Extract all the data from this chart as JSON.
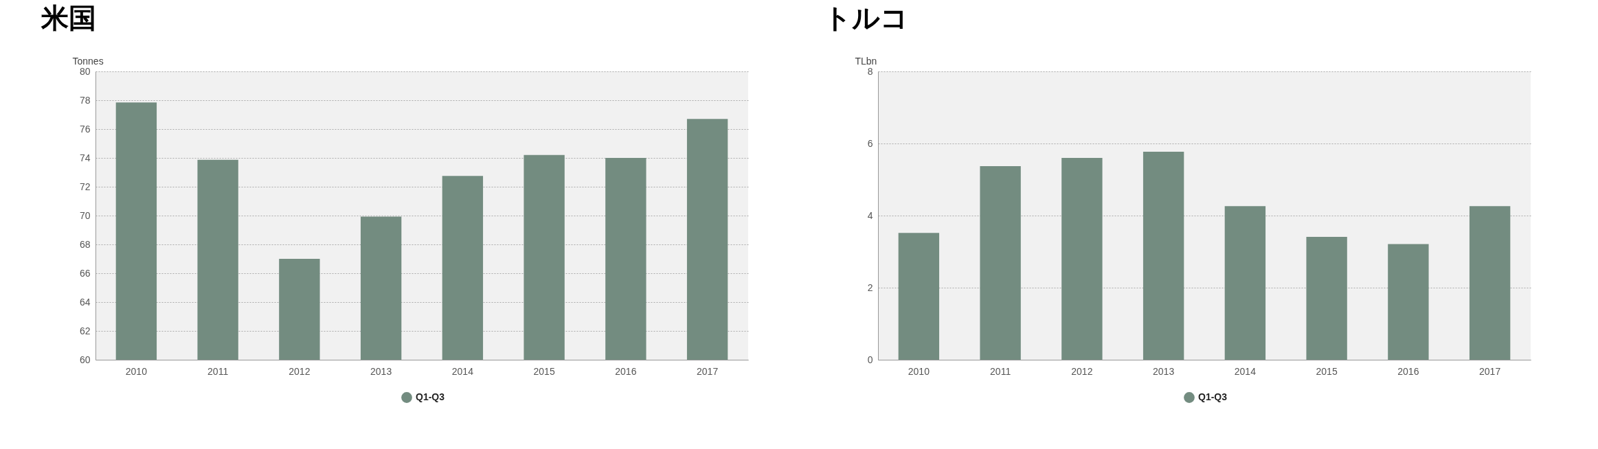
{
  "chart_data": [
    {
      "type": "bar",
      "title": "米国",
      "ylabel": "Tonnes",
      "categories": [
        "2010",
        "2011",
        "2012",
        "2013",
        "2014",
        "2015",
        "2016",
        "2017"
      ],
      "series": [
        {
          "name": "Q1-Q3",
          "color": "#738c80",
          "values": [
            77.85,
            73.87,
            67.0,
            69.93,
            72.75,
            74.2,
            74.0,
            76.7
          ]
        }
      ],
      "ylim": [
        60,
        80
      ],
      "yticks": [
        60,
        62,
        64,
        66,
        68,
        70,
        72,
        74,
        76,
        78,
        80
      ],
      "grid": "y",
      "legend": "bottom"
    },
    {
      "type": "bar",
      "title": "トルコ",
      "ylabel": "TLbn",
      "categories": [
        "2010",
        "2011",
        "2012",
        "2013",
        "2014",
        "2015",
        "2016",
        "2017"
      ],
      "series": [
        {
          "name": "Q1-Q3",
          "color": "#738c80",
          "values": [
            3.52,
            5.37,
            5.6,
            5.77,
            4.26,
            3.41,
            3.21,
            4.26
          ]
        }
      ],
      "ylim": [
        0,
        8
      ],
      "yticks": [
        0,
        2,
        4,
        6,
        8
      ],
      "grid": "y",
      "legend": "bottom"
    }
  ]
}
